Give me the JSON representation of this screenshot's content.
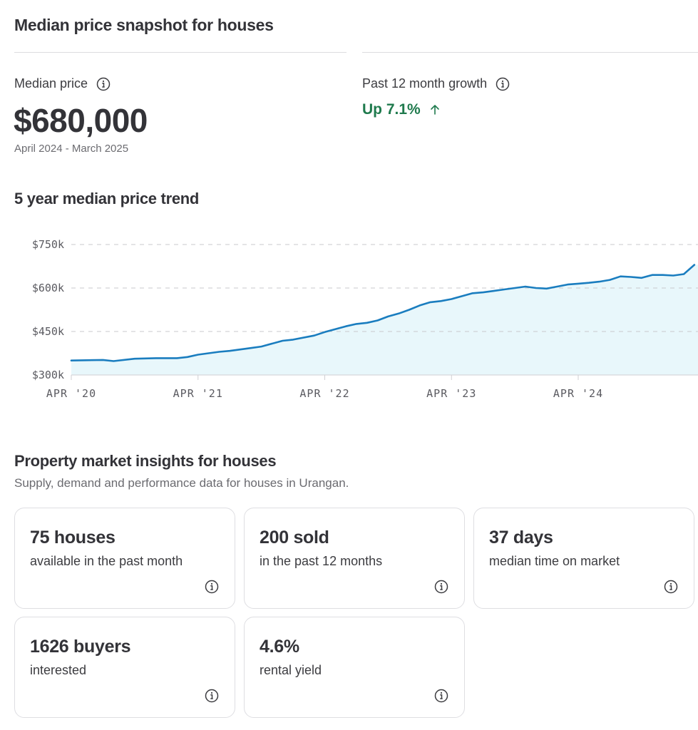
{
  "snapshot": {
    "title": "Median price snapshot for houses",
    "median_label": "Median price",
    "median_value": "$680,000",
    "period": "April 2024 - March 2025",
    "growth_label": "Past 12 month growth",
    "growth_value": "Up 7.1%",
    "growth_color": "#1f7a4d"
  },
  "trend": {
    "title": "5 year median price trend"
  },
  "chart_data": {
    "type": "area",
    "title": "5 year median price trend",
    "xlabel": "",
    "ylabel": "",
    "y_ticks": [
      "$750k",
      "$600k",
      "$450k",
      "$300k"
    ],
    "y_tick_values": [
      750,
      600,
      450,
      300
    ],
    "x_ticks": [
      "APR '20",
      "APR '21",
      "APR '22",
      "APR '23",
      "APR '24"
    ],
    "ylim": [
      300,
      750
    ],
    "grid": true,
    "line_color": "#1a7dbf",
    "fill_color": "#e8f7fb",
    "x_months": [
      0,
      3,
      4,
      6,
      8,
      10,
      11,
      12,
      14,
      15,
      17,
      18,
      20,
      21,
      23,
      24,
      25,
      26,
      27,
      28,
      29,
      30,
      31,
      32,
      33,
      34,
      35,
      36,
      37,
      38,
      39,
      40,
      41,
      42,
      43,
      44,
      45,
      46,
      47,
      48,
      49,
      50,
      51,
      52,
      53,
      54,
      55,
      56,
      57,
      58,
      59
    ],
    "values": [
      350,
      352,
      348,
      356,
      358,
      358,
      362,
      370,
      380,
      383,
      393,
      398,
      418,
      422,
      436,
      448,
      458,
      468,
      476,
      480,
      488,
      502,
      512,
      525,
      540,
      551,
      555,
      562,
      572,
      582,
      585,
      590,
      595,
      600,
      605,
      600,
      598,
      605,
      612,
      615,
      618,
      622,
      628,
      640,
      638,
      635,
      645,
      645,
      643,
      648,
      680
    ]
  },
  "insights": {
    "title": "Property market insights for houses",
    "subtitle": "Supply, demand and performance data for houses in Urangan.",
    "cards": [
      {
        "value": "75 houses",
        "caption": "available in the past month"
      },
      {
        "value": "200 sold",
        "caption": "in the past 12 months"
      },
      {
        "value": "37 days",
        "caption": "median time on market"
      },
      {
        "value": "1626 buyers",
        "caption": "interested"
      },
      {
        "value": "4.6%",
        "caption": "rental yield"
      }
    ]
  },
  "icons": {
    "info": "info-circle-icon",
    "growth": "arrow-up-icon"
  }
}
